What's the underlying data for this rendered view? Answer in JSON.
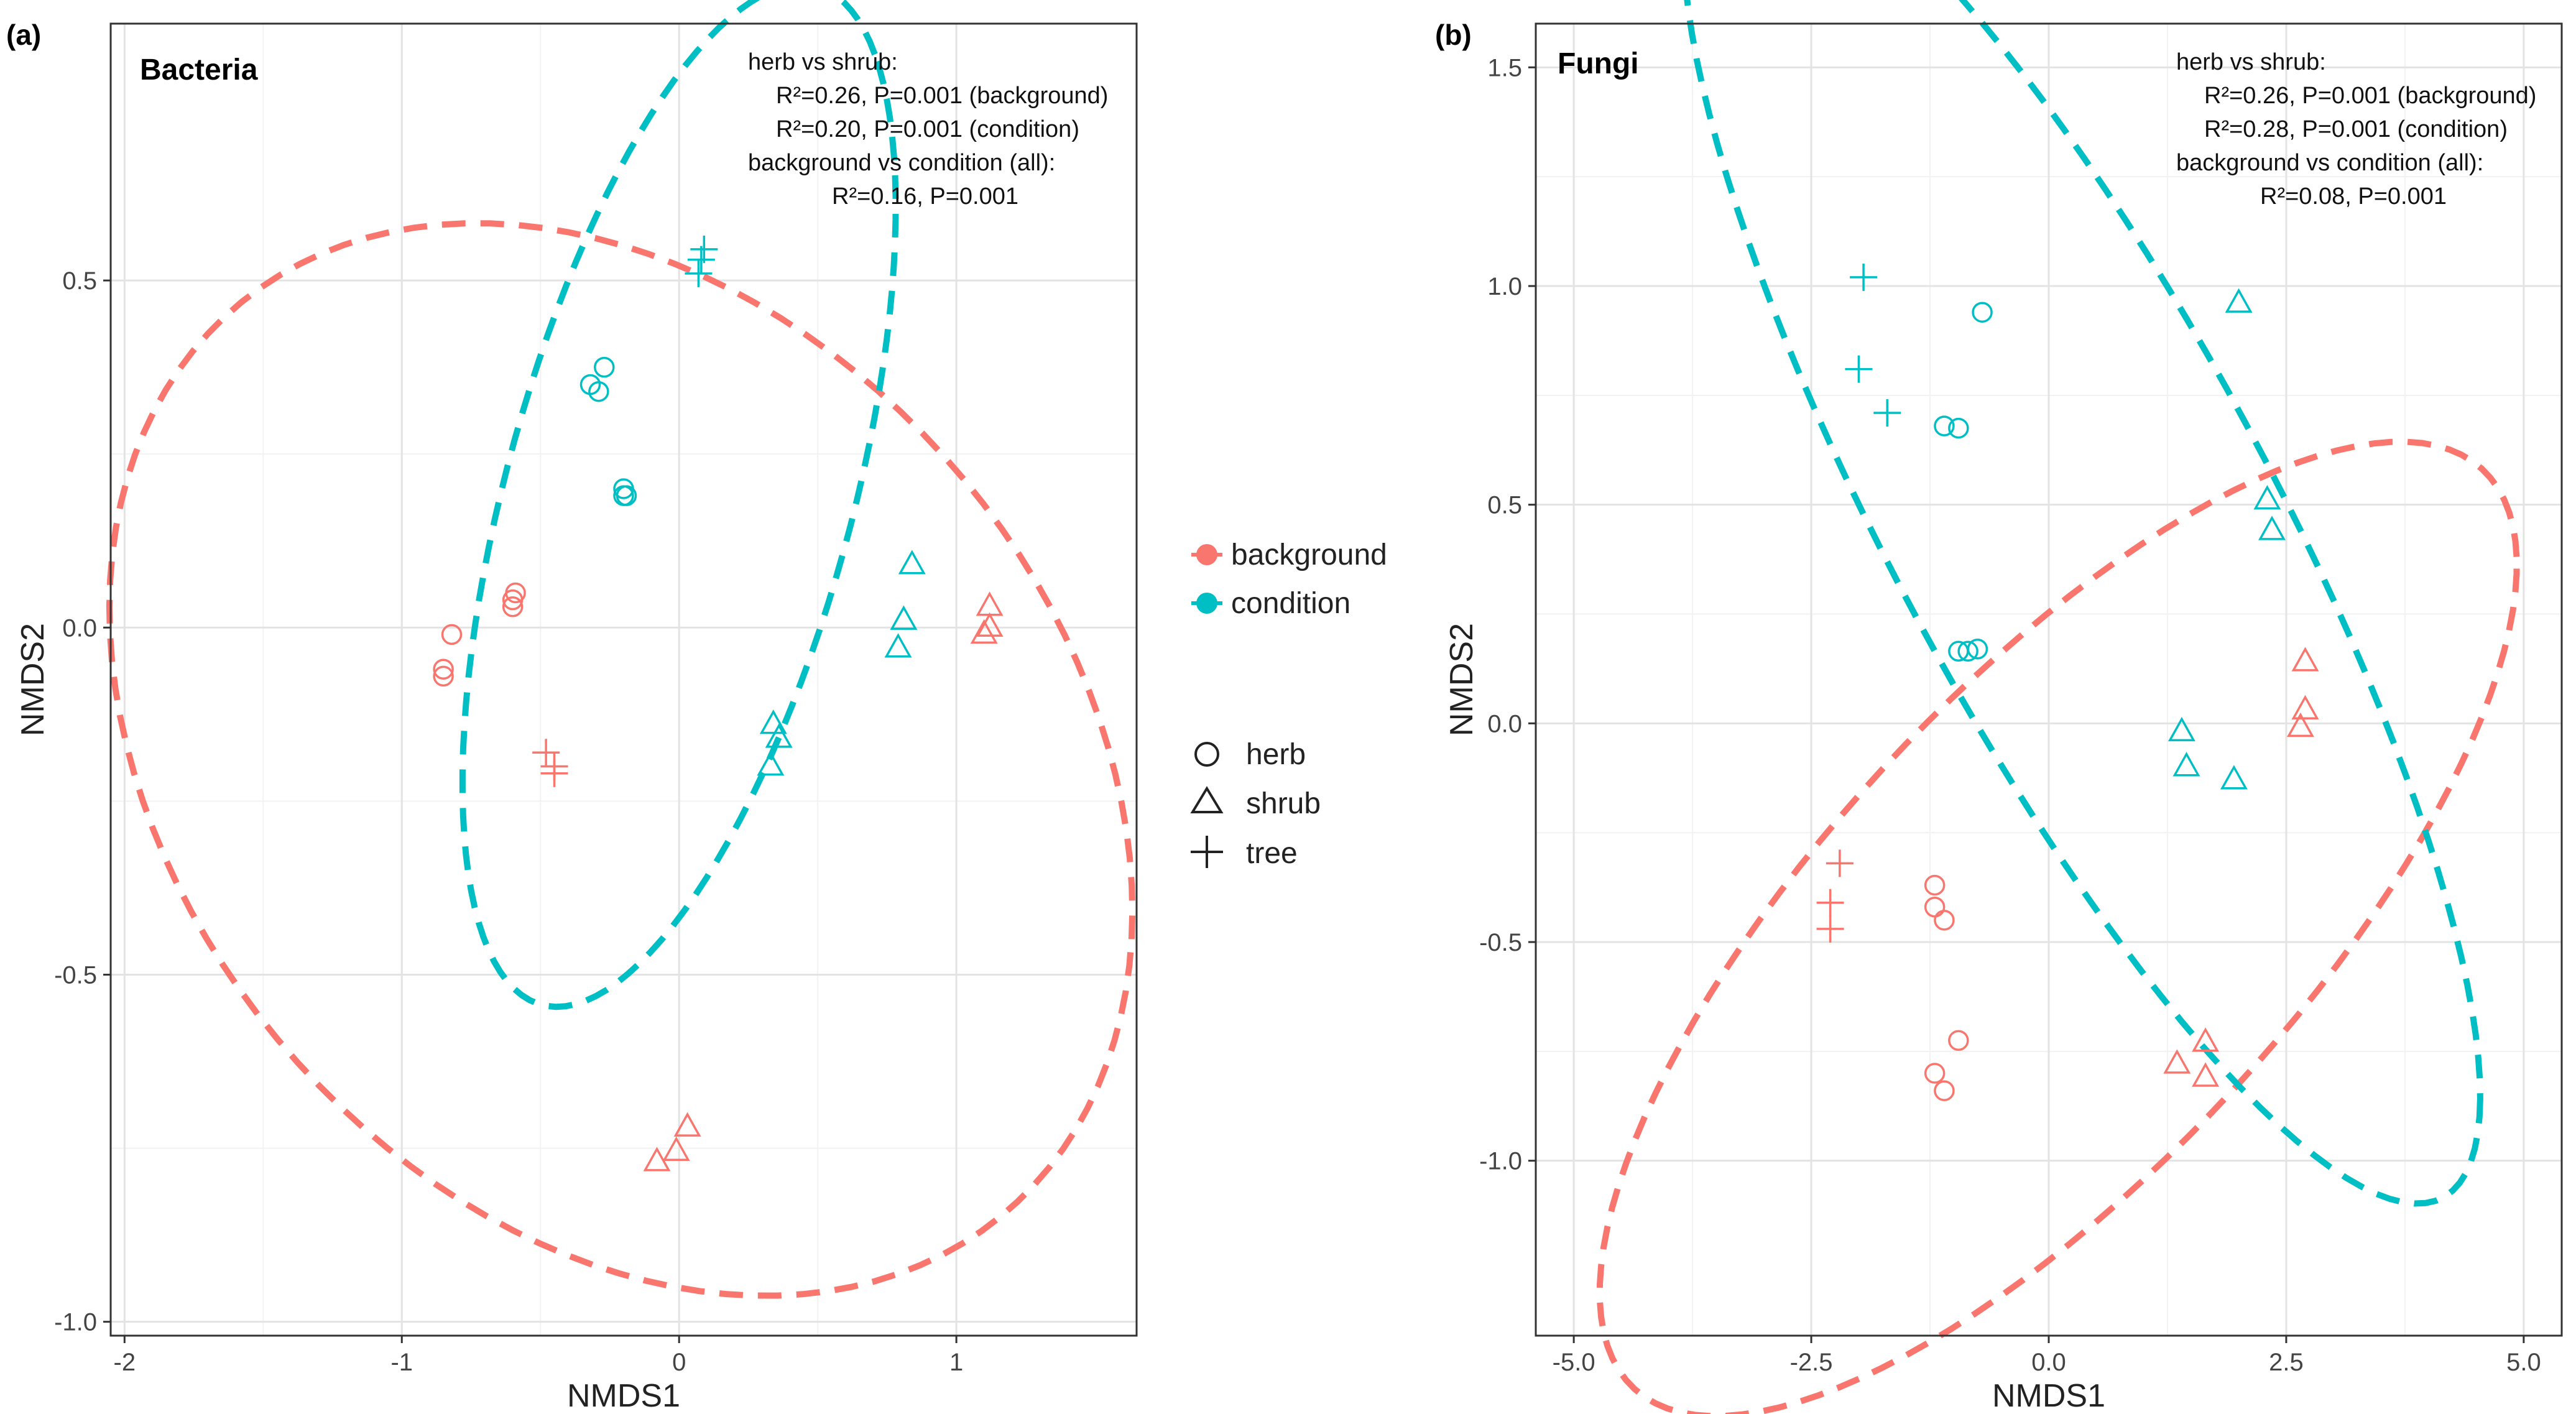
{
  "legend": {
    "colors": [
      {
        "label": "background",
        "color": "#F8766D"
      },
      {
        "label": "condition",
        "color": "#00BFC4"
      }
    ],
    "shapes": [
      {
        "label": "herb",
        "shape": "circle"
      },
      {
        "label": "shrub",
        "shape": "triangle"
      },
      {
        "label": "tree",
        "shape": "plus"
      }
    ]
  },
  "chart_data": [
    {
      "type": "scatter",
      "panel_tag": "(a)",
      "title": "Bacteria",
      "xlabel": "NMDS1",
      "ylabel": "NMDS2",
      "xlim": [
        -2.05,
        1.65
      ],
      "ylim": [
        -1.02,
        0.87
      ],
      "xticks": [
        -2,
        -1,
        0,
        1
      ],
      "xtick_labels": [
        "-2",
        "-1",
        "0",
        "1"
      ],
      "yticks": [
        -1.0,
        -0.5,
        0.0,
        0.5
      ],
      "ytick_labels": [
        "-1.0",
        "-0.5",
        "0.0",
        "0.5"
      ],
      "annotations": [
        "herb vs shrub:",
        "R²=0.26, P=0.001 (background)",
        "R²=0.20, P=0.001 (condition)",
        "background vs condition (all):",
        "R²=0.16, P=0.001"
      ],
      "ellipses": [
        {
          "group": "background",
          "center": [
            -0.21,
            -0.19
          ],
          "rx": 1.86,
          "ry": 0.735,
          "angle": -8
        },
        {
          "group": "condition",
          "center": [
            0.0,
            0.19
          ],
          "rx": 0.95,
          "ry": 0.5,
          "angle": 42
        }
      ],
      "series": [
        {
          "group": "background",
          "shape": "herb",
          "points": [
            [
              -0.82,
              -0.01
            ],
            [
              -0.85,
              -0.06
            ],
            [
              -0.85,
              -0.07
            ],
            [
              -0.6,
              0.04
            ],
            [
              -0.6,
              0.03
            ],
            [
              -0.59,
              0.05
            ]
          ]
        },
        {
          "group": "background",
          "shape": "shrub",
          "points": [
            [
              0.03,
              -0.72
            ],
            [
              -0.01,
              -0.755
            ],
            [
              -0.08,
              -0.77
            ],
            [
              1.12,
              0.03
            ],
            [
              1.1,
              -0.01
            ],
            [
              1.12,
              0.0
            ]
          ]
        },
        {
          "group": "background",
          "shape": "tree",
          "points": [
            [
              -0.48,
              -0.18
            ],
            [
              -0.45,
              -0.2
            ],
            [
              -0.45,
              -0.21
            ]
          ]
        },
        {
          "group": "condition",
          "shape": "herb",
          "points": [
            [
              -0.27,
              0.375
            ],
            [
              -0.32,
              0.35
            ],
            [
              -0.29,
              0.34
            ],
            [
              -0.2,
              0.2
            ],
            [
              -0.2,
              0.19
            ],
            [
              -0.19,
              0.19
            ]
          ]
        },
        {
          "group": "condition",
          "shape": "shrub",
          "points": [
            [
              0.84,
              0.09
            ],
            [
              0.81,
              0.01
            ],
            [
              0.79,
              -0.03
            ],
            [
              0.34,
              -0.14
            ],
            [
              0.36,
              -0.16
            ],
            [
              0.33,
              -0.2
            ]
          ]
        },
        {
          "group": "condition",
          "shape": "tree",
          "points": [
            [
              0.09,
              0.545
            ],
            [
              0.08,
              0.53
            ],
            [
              0.07,
              0.51
            ]
          ]
        }
      ]
    },
    {
      "type": "scatter",
      "panel_tag": "(b)",
      "title": "Fungi",
      "xlabel": "NMDS1",
      "ylabel": "NMDS2",
      "xlim": [
        -5.4,
        5.4
      ],
      "ylim": [
        -1.4,
        1.6
      ],
      "xticks": [
        -5.0,
        -2.5,
        0.0,
        2.5,
        5.0
      ],
      "xtick_labels": [
        "-5.0",
        "-2.5",
        "0.0",
        "2.5",
        "5.0"
      ],
      "yticks": [
        -1.0,
        -0.5,
        0.0,
        0.5,
        1.0,
        1.5
      ],
      "ytick_labels": [
        "-1.0",
        "-0.5",
        "0.0",
        "0.5",
        "1.0",
        "1.5"
      ],
      "annotations": [
        "herb vs shrub:",
        "R²=0.26, P=0.001 (background)",
        "R²=0.28, P=0.001 (condition)",
        "background vs condition (all):",
        "R²=0.08, P=0.001"
      ],
      "ellipses": [
        {
          "group": "background",
          "center": [
            0.1,
            -0.47
          ],
          "rx": 4.9,
          "ry": 0.73,
          "angle": 10
        },
        {
          "group": "condition",
          "center": [
            0.35,
            0.46
          ],
          "rx": 4.4,
          "ry": 0.8,
          "angle": -18
        }
      ],
      "series": [
        {
          "group": "background",
          "shape": "herb",
          "points": [
            [
              -1.2,
              -0.37
            ],
            [
              -1.2,
              -0.42
            ],
            [
              -1.1,
              -0.45
            ],
            [
              -0.95,
              -0.725
            ],
            [
              -1.2,
              -0.8
            ],
            [
              -1.1,
              -0.84
            ]
          ]
        },
        {
          "group": "background",
          "shape": "shrub",
          "points": [
            [
              2.7,
              0.14
            ],
            [
              2.7,
              0.03
            ],
            [
              2.65,
              -0.01
            ],
            [
              1.65,
              -0.73
            ],
            [
              1.35,
              -0.78
            ],
            [
              1.65,
              -0.81
            ]
          ]
        },
        {
          "group": "background",
          "shape": "tree",
          "points": [
            [
              -2.2,
              -0.32
            ],
            [
              -2.3,
              -0.41
            ],
            [
              -2.3,
              -0.47
            ]
          ]
        },
        {
          "group": "condition",
          "shape": "herb",
          "points": [
            [
              -0.7,
              0.94
            ],
            [
              -1.1,
              0.68
            ],
            [
              -0.95,
              0.675
            ],
            [
              -0.75,
              0.17
            ],
            [
              -0.85,
              0.165
            ],
            [
              -0.95,
              0.165
            ]
          ]
        },
        {
          "group": "condition",
          "shape": "shrub",
          "points": [
            [
              2.0,
              0.96
            ],
            [
              2.3,
              0.51
            ],
            [
              2.35,
              0.44
            ],
            [
              1.4,
              -0.02
            ],
            [
              1.45,
              -0.1
            ],
            [
              1.95,
              -0.13
            ]
          ]
        },
        {
          "group": "condition",
          "shape": "tree",
          "points": [
            [
              -1.95,
              1.02
            ],
            [
              -2.0,
              0.81
            ],
            [
              -1.7,
              0.71
            ]
          ]
        }
      ]
    }
  ]
}
